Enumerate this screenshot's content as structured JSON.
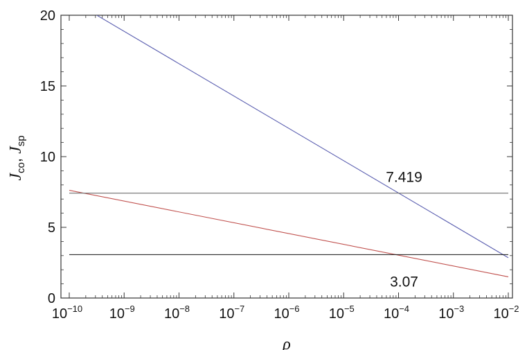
{
  "chart_data": {
    "type": "line",
    "title": "",
    "xlabel": "ρ",
    "ylabel": {
      "j1": "J",
      "sub1": "co",
      "sep": ", ",
      "j2": "J",
      "sub2": "sp"
    },
    "x_scale": "log",
    "xlim": [
      1e-10,
      0.01
    ],
    "ylim": [
      0,
      20
    ],
    "grid": false,
    "x_ticks": [
      {
        "base": "10",
        "exp": "−10",
        "value": 1e-10
      },
      {
        "base": "10",
        "exp": "−9",
        "value": 1e-09
      },
      {
        "base": "10",
        "exp": "−8",
        "value": 1e-08
      },
      {
        "base": "10",
        "exp": "−7",
        "value": 1e-07
      },
      {
        "base": "10",
        "exp": "−6",
        "value": 1e-06
      },
      {
        "base": "10",
        "exp": "−5",
        "value": 1e-05
      },
      {
        "base": "10",
        "exp": "−4",
        "value": 0.0001
      },
      {
        "base": "10",
        "exp": "−3",
        "value": 0.001
      },
      {
        "base": "10",
        "exp": "−2",
        "value": 0.01
      }
    ],
    "y_ticks": [
      {
        "label": "0",
        "value": 0
      },
      {
        "label": "5",
        "value": 5
      },
      {
        "label": "10",
        "value": 10
      },
      {
        "label": "15",
        "value": 15
      },
      {
        "label": "20",
        "value": 20
      }
    ],
    "series": [
      {
        "color": "#5b5fb0",
        "x": [
          1e-10,
          0.01
        ],
        "y": [
          21.15,
          2.85
        ]
      },
      {
        "color": "#c0504d",
        "x": [
          1e-10,
          0.01
        ],
        "y": [
          7.62,
          1.5
        ]
      },
      {
        "color": "#6b6b6b",
        "x": [
          1e-10,
          0.01
        ],
        "y": [
          7.419,
          7.419
        ]
      },
      {
        "color": "#111111",
        "x": [
          1e-10,
          0.01
        ],
        "y": [
          3.07,
          3.07
        ]
      }
    ],
    "annotations": [
      {
        "text": "7.419",
        "x": 0.0001,
        "y": 8.55
      },
      {
        "text": "3.07",
        "x": 0.0001,
        "y": 1.15
      }
    ]
  }
}
